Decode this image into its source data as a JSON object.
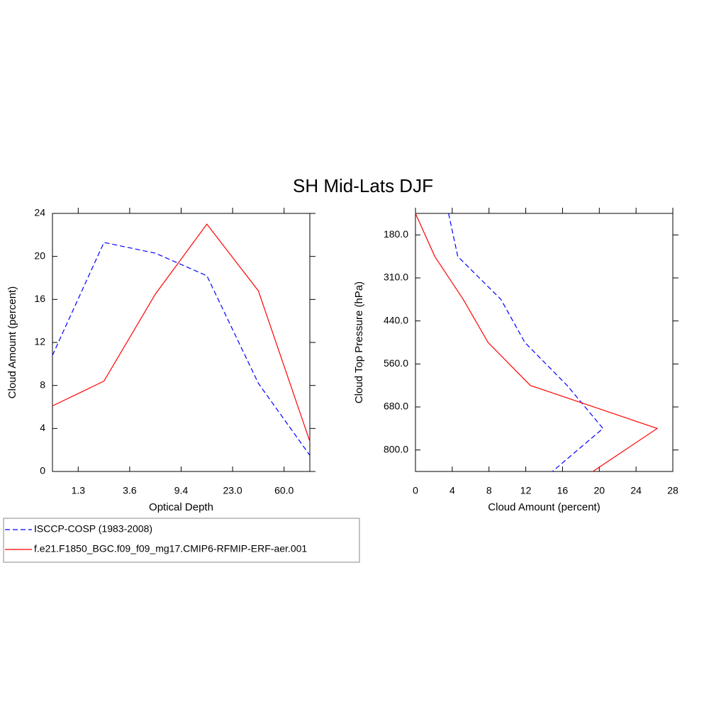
{
  "title": "SH Mid-Lats DJF",
  "chart_data": [
    {
      "type": "line",
      "orientation": "vertical",
      "x_label": "Optical Depth",
      "y_label": "Cloud Amount (percent)",
      "x": [
        0,
        1,
        2,
        3,
        4,
        5
      ],
      "xlim": [
        0,
        5
      ],
      "xticks": [
        {
          "value": 0.5,
          "label": "1.3"
        },
        {
          "value": 1.5,
          "label": "3.6"
        },
        {
          "value": 2.5,
          "label": "9.4"
        },
        {
          "value": 3.5,
          "label": "23.0"
        },
        {
          "value": 4.5,
          "label": "60.0"
        }
      ],
      "ylim": [
        0,
        24
      ],
      "yticks": [
        0,
        4,
        8,
        12,
        16,
        20,
        24
      ],
      "series": [
        {
          "name": "ISCCP-COSP (1983-2008)",
          "color": "#0000ff",
          "line_style": "dashed",
          "values": [
            10.8,
            21.3,
            20.3,
            18.2,
            8.2,
            1.5
          ]
        },
        {
          "name": "f.e21.F1850_BGC.f09_f09_mg17.CMIP6-RFMIP-ERF-aer.001",
          "color": "#ff0000",
          "line_style": "solid",
          "values": [
            6.1,
            8.4,
            16.5,
            23.0,
            16.8,
            2.8
          ]
        }
      ]
    },
    {
      "type": "line",
      "orientation": "horizontal",
      "x_label": "Cloud Amount (percent)",
      "y_label": "Cloud Top Pressure (hPa)",
      "y": [
        0,
        1,
        2,
        3,
        4,
        5,
        6
      ],
      "ylim": [
        6,
        0
      ],
      "yticks": [
        {
          "value": 0.5,
          "label": "180.0"
        },
        {
          "value": 1.5,
          "label": "310.0"
        },
        {
          "value": 2.5,
          "label": "440.0"
        },
        {
          "value": 3.5,
          "label": "560.0"
        },
        {
          "value": 4.5,
          "label": "680.0"
        },
        {
          "value": 5.5,
          "label": "800.0"
        }
      ],
      "xlim": [
        0,
        28
      ],
      "xticks": [
        0,
        4,
        8,
        12,
        16,
        20,
        24,
        28
      ],
      "series": [
        {
          "name": "ISCCP-COSP (1983-2008)",
          "color": "#0000ff",
          "line_style": "dashed",
          "values": [
            3.6,
            4.6,
            9.3,
            11.9,
            16.5,
            20.4,
            14.9
          ]
        },
        {
          "name": "f.e21.F1850_BGC.f09_f09_mg17.CMIP6-RFMIP-ERF-aer.001",
          "color": "#ff0000",
          "line_style": "solid",
          "values": [
            0,
            2.1,
            5.2,
            7.9,
            12.5,
            26.3,
            19.3
          ]
        }
      ]
    }
  ]
}
